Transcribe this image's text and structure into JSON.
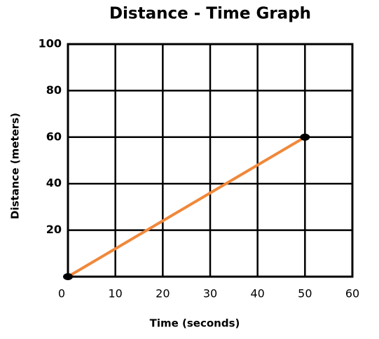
{
  "chart_data": {
    "type": "line",
    "title": "Distance - Time Graph",
    "x_label": "Time (seconds)",
    "y_label": "Distance (meters)",
    "series": [
      {
        "name": "distance",
        "color": "#f0883a",
        "x": [
          0,
          50
        ],
        "values": [
          0,
          60
        ]
      }
    ],
    "xlim": [
      0,
      60
    ],
    "xticks": [
      0,
      10,
      20,
      30,
      40,
      50,
      60
    ],
    "ylim": [
      0,
      100
    ],
    "yticks": [
      20,
      40,
      60,
      80,
      100
    ],
    "grid": true
  }
}
